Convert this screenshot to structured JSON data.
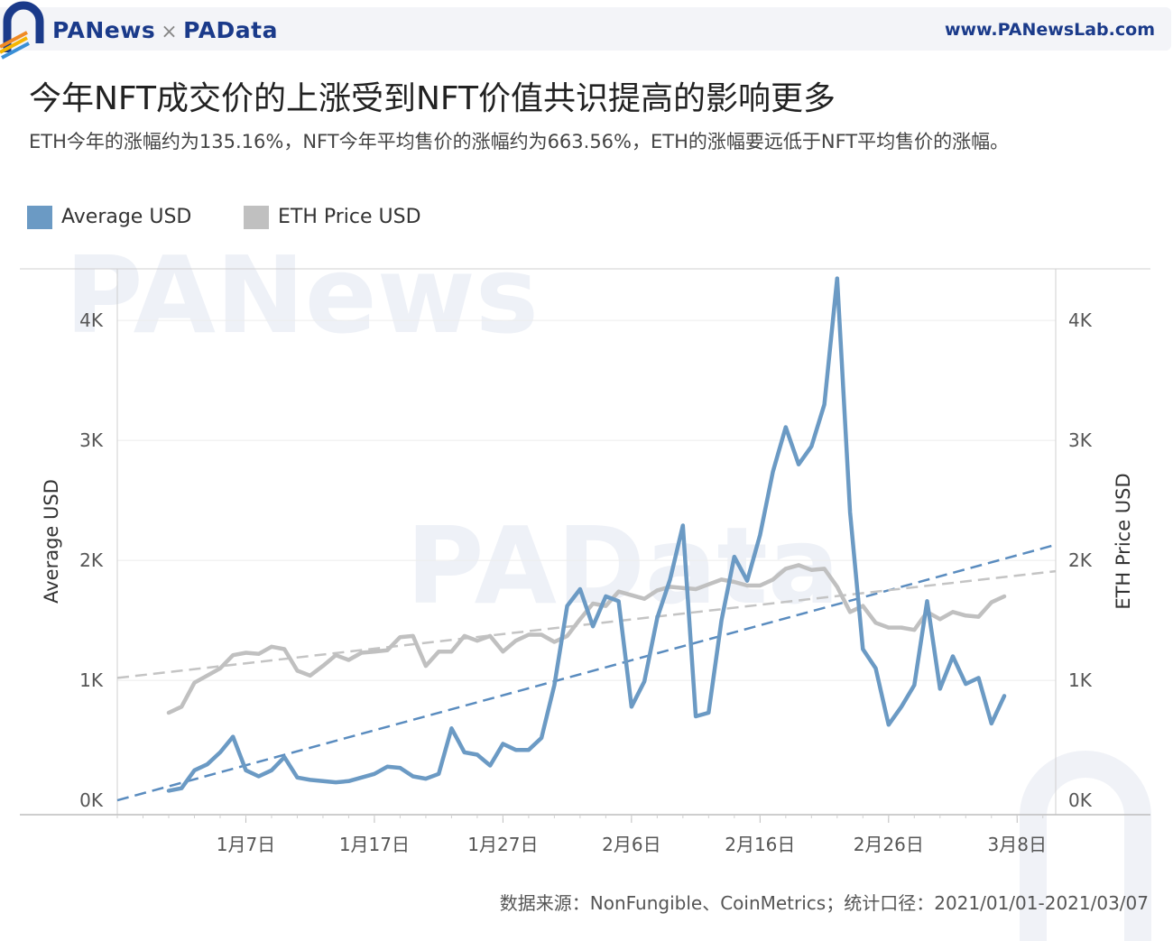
{
  "header": {
    "brand_left": "PANews",
    "brand_sep": "×",
    "brand_right": "PAData",
    "url": "www.PANewsLab.com"
  },
  "title": "今年NFT成交价的上涨受到NFT价值共识提高的影响更多",
  "subtitle": "ETH今年的涨幅约为135.16%，NFT今年平均售价的涨幅约为663.56%，ETH的涨幅要远低于NFT平均售价的涨幅。",
  "legend": [
    {
      "label": "Average USD",
      "color": "#6b9ac4"
    },
    {
      "label": "ETH Price USD",
      "color": "#c0c0c0"
    }
  ],
  "watermarks": [
    "PANews",
    "PAData"
  ],
  "source": "数据来源：NonFungible、CoinMetrics；统计口径：2021/01/01-2021/03/07",
  "chart_data": {
    "type": "line",
    "x_label_ticks": [
      "1月7日",
      "1月17日",
      "1月27日",
      "2月6日",
      "2月16日",
      "2月26日",
      "3月8日"
    ],
    "x_range_dates": [
      "2020-12-28",
      "2021-03-11"
    ],
    "x_dates_start": "2021-01-01",
    "left_axis": {
      "title": "Average USD",
      "ticks": [
        "0K",
        "1K",
        "2K",
        "3K",
        "4K"
      ],
      "range": [
        -120,
        4430
      ]
    },
    "right_axis": {
      "title": "ETH Price USD",
      "ticks": [
        "0K",
        "1K",
        "2K",
        "3K",
        "4K"
      ],
      "range": [
        -120,
        4430
      ]
    },
    "series": [
      {
        "name": "Average USD",
        "color": "#6b9ac4",
        "axis": "left",
        "values": [
          80,
          100,
          250,
          300,
          400,
          530,
          250,
          200,
          250,
          360,
          190,
          170,
          160,
          150,
          160,
          190,
          220,
          280,
          270,
          200,
          180,
          220,
          600,
          400,
          380,
          290,
          470,
          420,
          420,
          520,
          960,
          1620,
          1760,
          1450,
          1700,
          1660,
          780,
          990,
          1520,
          1840,
          2290,
          700,
          730,
          1500,
          2030,
          1830,
          2210,
          2740,
          3110,
          2800,
          2950,
          3300,
          4350,
          2400,
          1260,
          1100,
          630,
          780,
          960,
          1660,
          930,
          1200,
          970,
          1020,
          640,
          870
        ]
      },
      {
        "name": "ETH Price USD",
        "color": "#c0c0c0",
        "axis": "left",
        "values": [
          730,
          780,
          980,
          1040,
          1100,
          1210,
          1230,
          1220,
          1280,
          1260,
          1080,
          1040,
          1120,
          1210,
          1170,
          1230,
          1240,
          1250,
          1360,
          1370,
          1120,
          1240,
          1240,
          1370,
          1330,
          1370,
          1240,
          1330,
          1380,
          1380,
          1320,
          1370,
          1510,
          1640,
          1620,
          1740,
          1710,
          1680,
          1750,
          1780,
          1770,
          1760,
          1800,
          1840,
          1820,
          1790,
          1790,
          1840,
          1930,
          1960,
          1920,
          1930,
          1780,
          1570,
          1620,
          1480,
          1440,
          1440,
          1420,
          1570,
          1510,
          1570,
          1540,
          1530,
          1650,
          1700
        ]
      }
    ],
    "trendlines": [
      {
        "series": "Average USD",
        "from": 0,
        "to": 2130,
        "style": "dashed"
      },
      {
        "series": "ETH Price USD",
        "from": 1020,
        "to": 1910,
        "style": "dashed"
      }
    ],
    "grid": true
  }
}
